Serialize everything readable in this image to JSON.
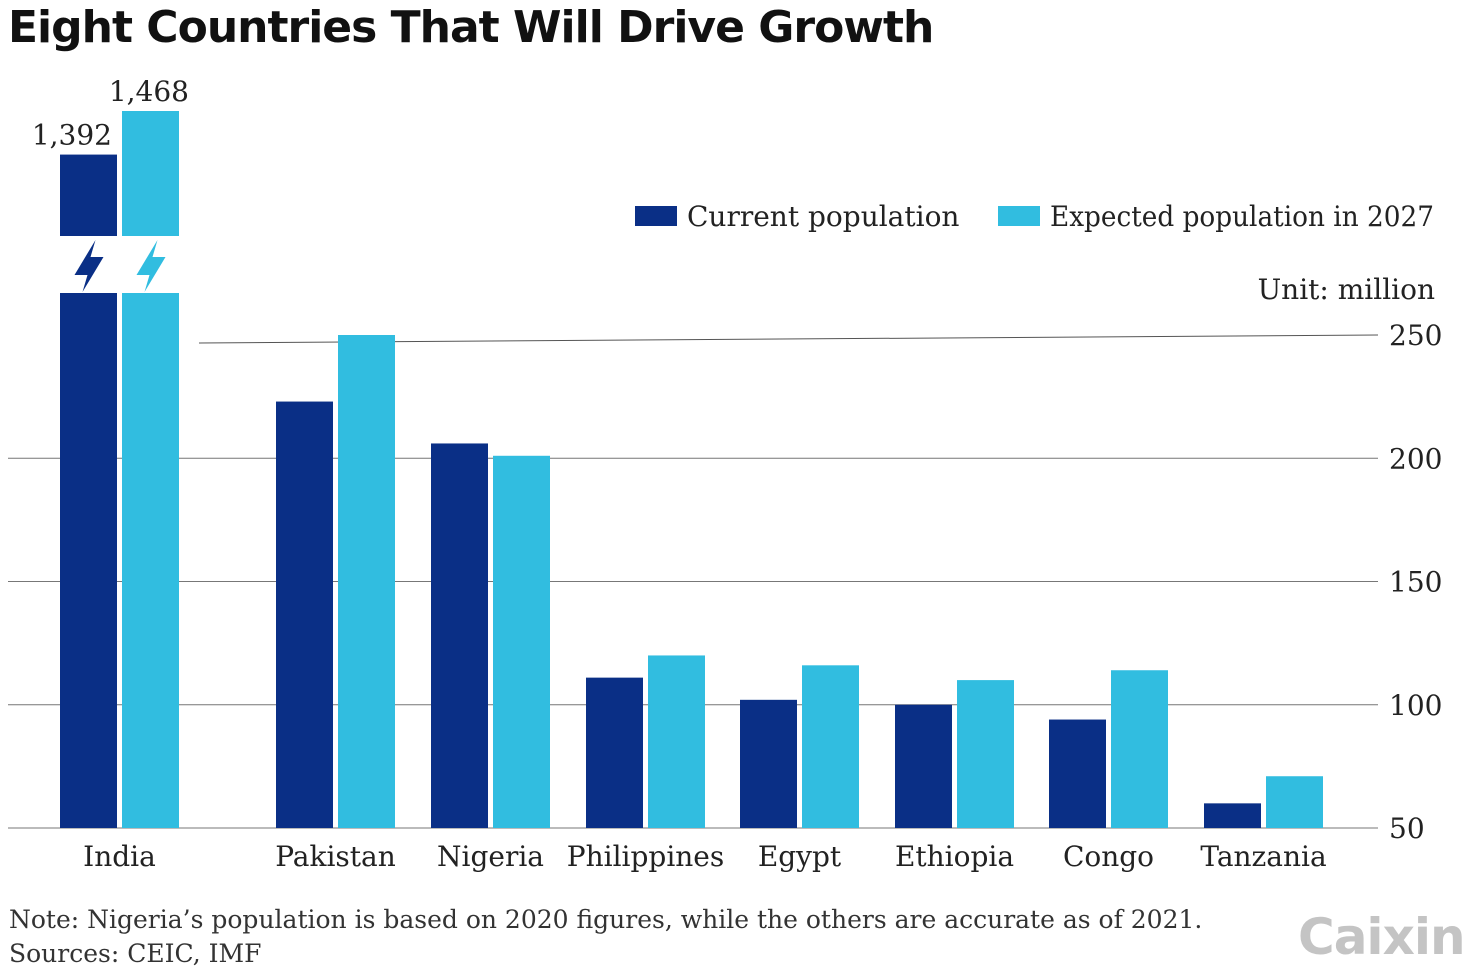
{
  "title": "Eight Countries That Will Drive Growth",
  "unit_label": "Unit: million",
  "note": "Note: Nigeria’s population is based on 2020 figures, while the others are accurate as of 2021.",
  "sources": "Sources: CEIC, IMF",
  "logo": "Caixin",
  "colors": {
    "current": "#0a2f86",
    "expected": "#31bde0"
  },
  "chart_data": {
    "type": "bar",
    "categories": [
      "India",
      "Pakistan",
      "Nigeria",
      "Philippines",
      "Egypt",
      "Ethiopia",
      "Congo",
      "Tanzania"
    ],
    "series": [
      {
        "name": "Current population",
        "values": [
          1392,
          223,
          206,
          111,
          102,
          100,
          94,
          60
        ],
        "color": "#0a2f86"
      },
      {
        "name": "Expected population in 2027",
        "values": [
          1468,
          250,
          201,
          120,
          116,
          110,
          114,
          71
        ],
        "color": "#31bde0"
      }
    ],
    "data_labels": [
      "1,392",
      "1,468"
    ],
    "ylim": [
      50,
      250
    ],
    "yticks": [
      50,
      100,
      150,
      200,
      250
    ],
    "axis_break": "India bars exceed axis range (broken bars)",
    "legend_position": "top-right",
    "grid": true
  }
}
